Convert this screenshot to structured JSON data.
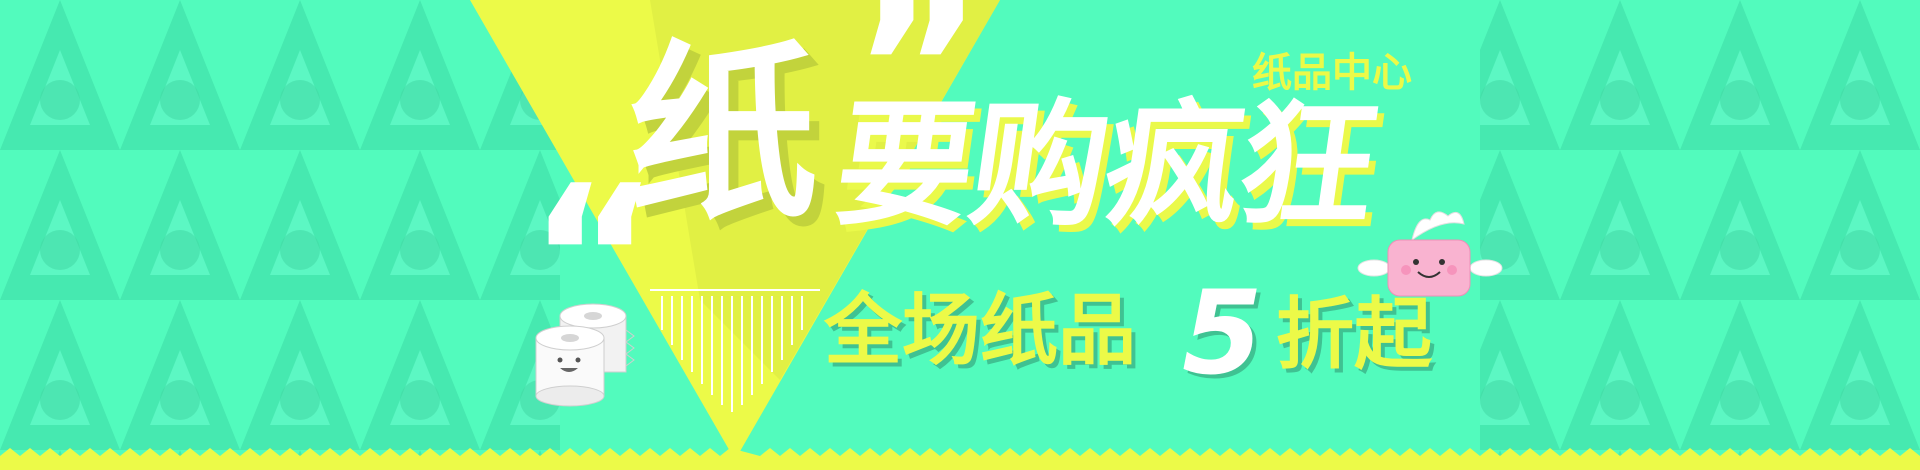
{
  "banner": {
    "category": "纸品中心",
    "quote_open": "“",
    "quote_close": "”",
    "hero_char": "纸",
    "headline": "要购疯狂",
    "sale_text_a": "全场纸品",
    "sale_number": "5",
    "sale_text_b": "折起"
  },
  "colors": {
    "background": "#52fbbd",
    "accent_yellow": "#ecfa48",
    "text_white": "#ffffff"
  },
  "icons": [
    "toilet-paper-rolls-icon",
    "tissue-box-mascot-icon"
  ]
}
